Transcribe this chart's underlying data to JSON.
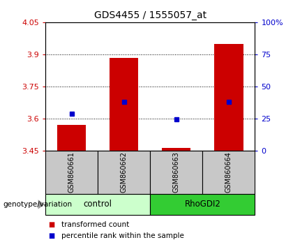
{
  "title": "GDS4455 / 1555057_at",
  "samples": [
    "GSM860661",
    "GSM860662",
    "GSM860663",
    "GSM860664"
  ],
  "bar_values": [
    3.571,
    3.882,
    3.462,
    3.948
  ],
  "bar_base": 3.45,
  "percentile_values": [
    3.621,
    3.678,
    3.598,
    3.678
  ],
  "ylim_left": [
    3.45,
    4.05
  ],
  "ylim_right": [
    0,
    100
  ],
  "yticks_left": [
    3.45,
    3.6,
    3.75,
    3.9,
    4.05
  ],
  "ytick_labels_left": [
    "3.45",
    "3.6",
    "3.75",
    "3.9",
    "4.05"
  ],
  "yticks_right": [
    0,
    25,
    50,
    75,
    100
  ],
  "ytick_labels_right": [
    "0",
    "25",
    "50",
    "75",
    "100%"
  ],
  "groups": [
    {
      "label": "control",
      "indices": [
        0,
        1
      ],
      "color": "#ccffcc"
    },
    {
      "label": "RhoGDI2",
      "indices": [
        2,
        3
      ],
      "color": "#33cc33"
    }
  ],
  "bar_color": "#cc0000",
  "marker_color": "#0000cc",
  "bar_width": 0.55,
  "grid_lines": [
    3.6,
    3.75,
    3.9
  ],
  "xlabel": "genotype/variation",
  "legend_items": [
    {
      "color": "#cc0000",
      "label": "transformed count"
    },
    {
      "color": "#0000cc",
      "label": "percentile rank within the sample"
    }
  ],
  "label_color_left": "#cc0000",
  "label_color_right": "#0000cc",
  "tick_area_color": "#c8c8c8"
}
